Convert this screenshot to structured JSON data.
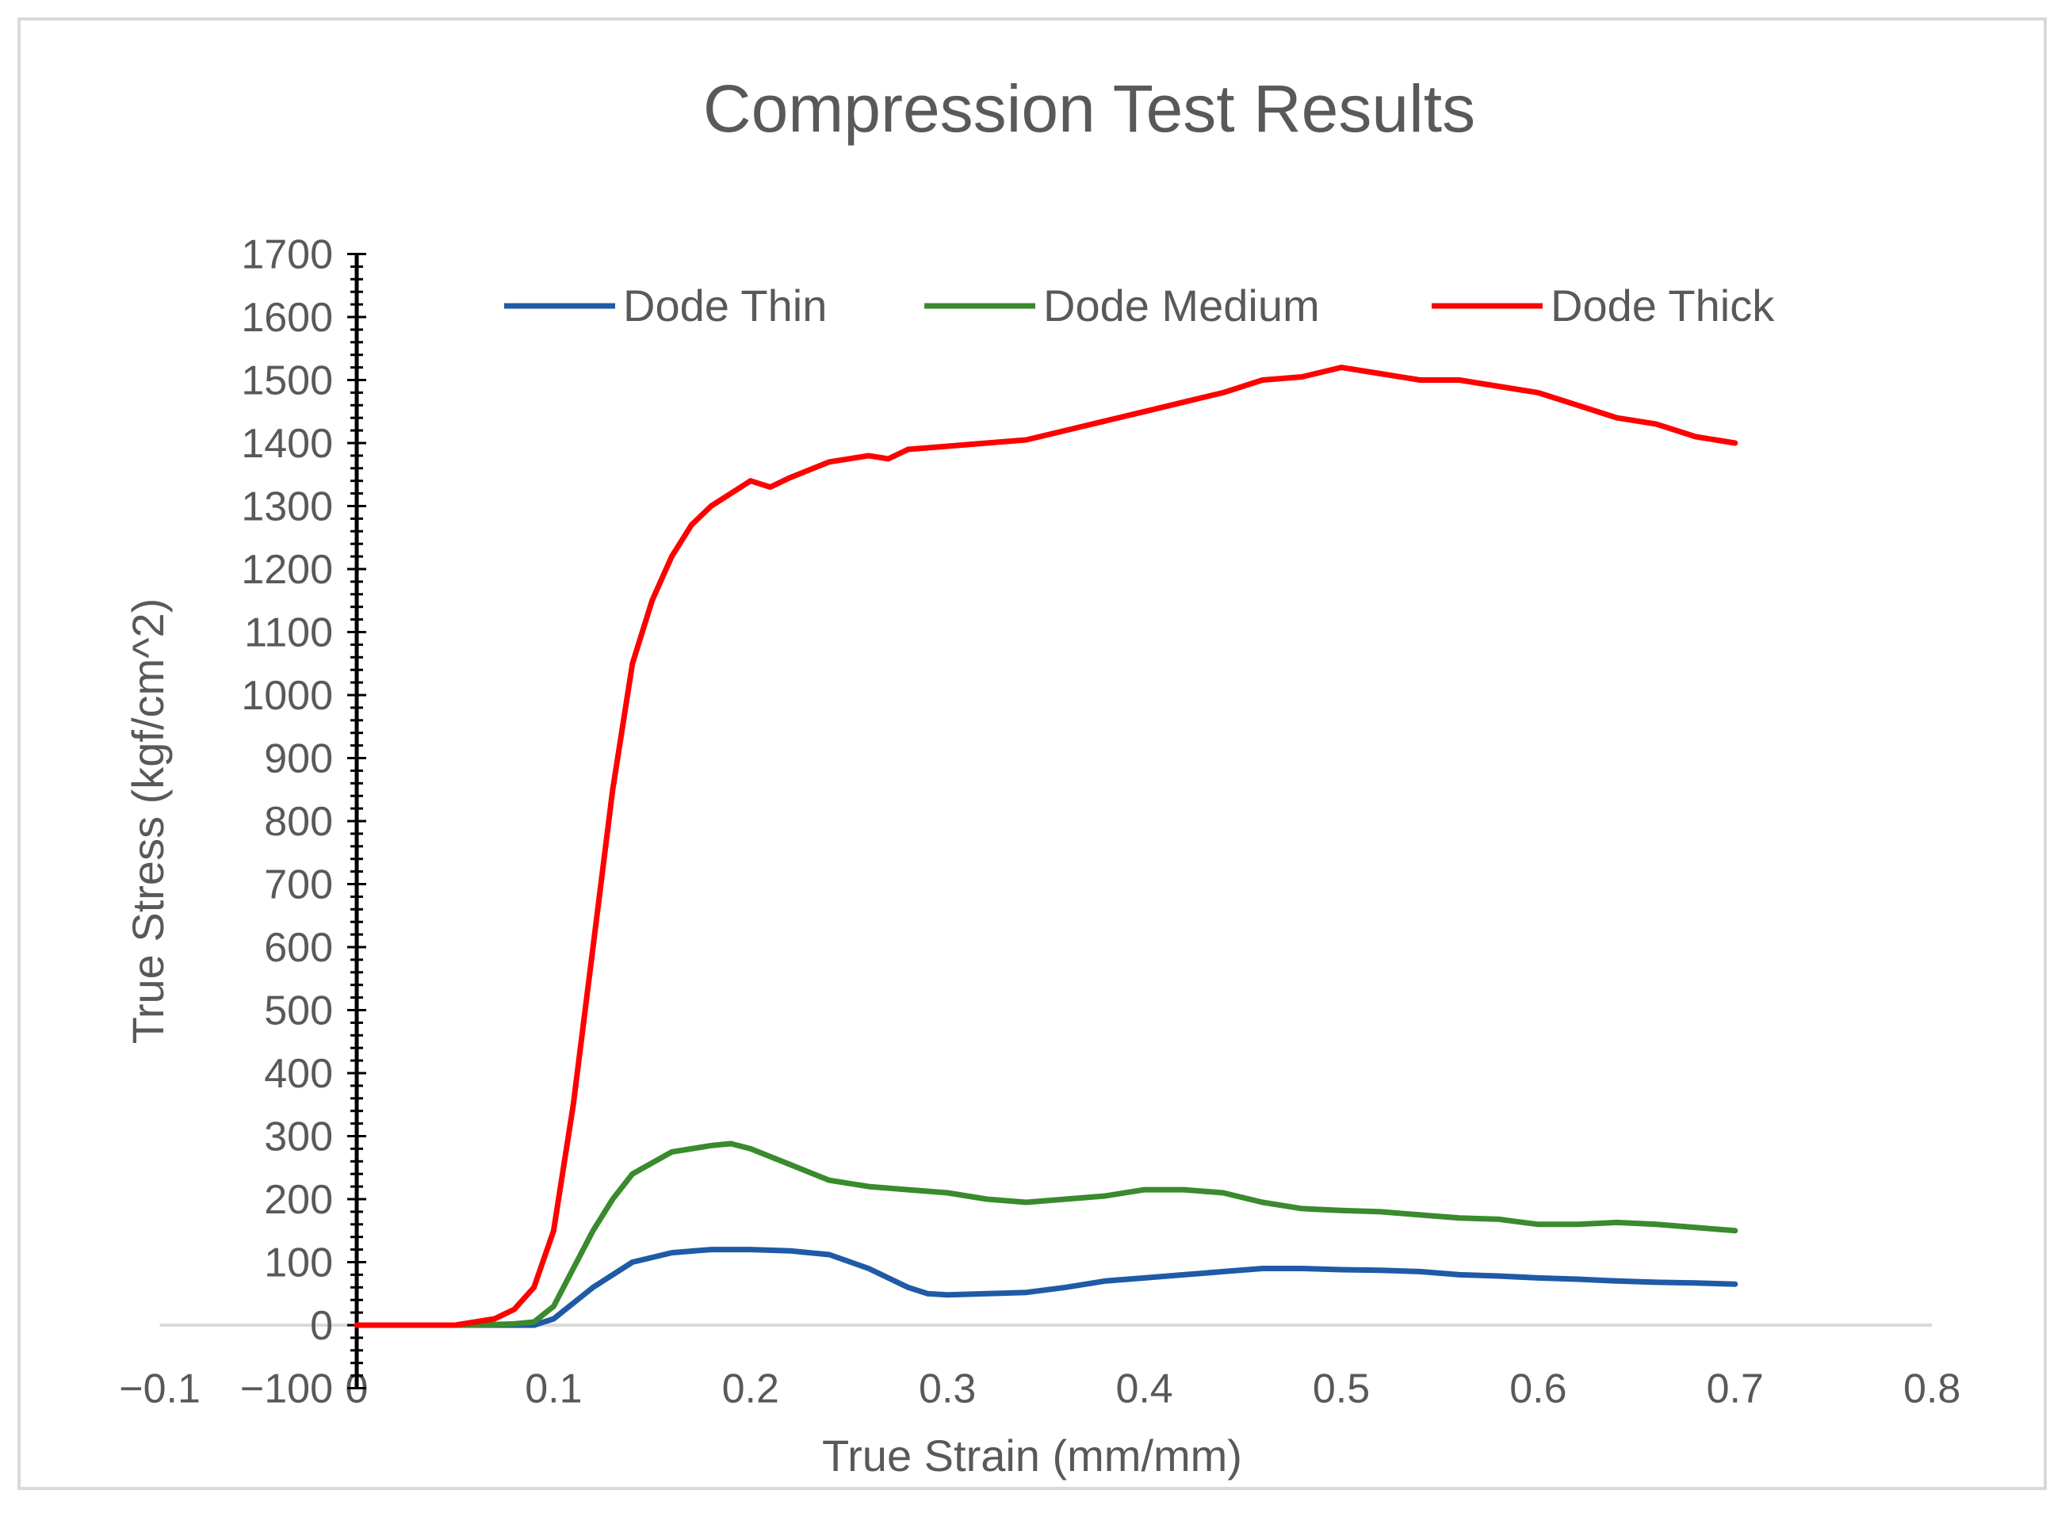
{
  "chart_data": {
    "type": "line",
    "title": "Compression Test Results",
    "xlabel": "True Strain (mm/mm)",
    "ylabel": "True Stress (kgf/cm^2)",
    "xlim": [
      -0.1,
      0.8
    ],
    "ylim": [
      -100,
      1700
    ],
    "x_ticks": [
      -0.1,
      0,
      0.1,
      0.2,
      0.3,
      0.4,
      0.5,
      0.6,
      0.7,
      0.8
    ],
    "x_tick_labels": [
      "−0.1",
      "0",
      "0.1",
      "0.2",
      "0.3",
      "0.4",
      "0.5",
      "0.6",
      "0.7",
      "0.8"
    ],
    "y_ticks": [
      -100,
      0,
      100,
      200,
      300,
      400,
      500,
      600,
      700,
      800,
      900,
      1000,
      1100,
      1200,
      1300,
      1400,
      1500,
      1600,
      1700
    ],
    "y_tick_labels": [
      "−100",
      "0",
      "100",
      "200",
      "300",
      "400",
      "500",
      "600",
      "700",
      "800",
      "900",
      "1000",
      "1100",
      "1200",
      "1300",
      "1400",
      "1500",
      "1600",
      "1700"
    ],
    "grid": false,
    "legend_position": "top",
    "series": [
      {
        "name": "Dode Thin",
        "color": "#1f5aa6",
        "x": [
          0,
          0.06,
          0.08,
          0.09,
          0.1,
          0.12,
          0.14,
          0.16,
          0.18,
          0.2,
          0.22,
          0.24,
          0.26,
          0.28,
          0.29,
          0.3,
          0.32,
          0.34,
          0.36,
          0.38,
          0.4,
          0.42,
          0.44,
          0.46,
          0.48,
          0.5,
          0.52,
          0.54,
          0.56,
          0.58,
          0.6,
          0.62,
          0.64,
          0.66,
          0.68,
          0.7
        ],
        "y": [
          0,
          0,
          0,
          0,
          10,
          60,
          100,
          115,
          120,
          120,
          118,
          112,
          90,
          60,
          50,
          48,
          50,
          52,
          60,
          70,
          75,
          80,
          85,
          90,
          90,
          88,
          87,
          85,
          80,
          78,
          75,
          73,
          70,
          68,
          67,
          65
        ]
      },
      {
        "name": "Dode Medium",
        "color": "#3a8a2e",
        "x": [
          0,
          0.06,
          0.08,
          0.09,
          0.1,
          0.11,
          0.12,
          0.13,
          0.14,
          0.16,
          0.18,
          0.19,
          0.2,
          0.22,
          0.24,
          0.26,
          0.28,
          0.3,
          0.32,
          0.34,
          0.36,
          0.38,
          0.4,
          0.42,
          0.44,
          0.46,
          0.48,
          0.5,
          0.52,
          0.54,
          0.56,
          0.58,
          0.6,
          0.62,
          0.64,
          0.66,
          0.68,
          0.7
        ],
        "y": [
          0,
          0,
          2,
          5,
          30,
          90,
          150,
          200,
          240,
          275,
          285,
          288,
          280,
          255,
          230,
          220,
          215,
          210,
          200,
          195,
          200,
          205,
          215,
          215,
          210,
          195,
          185,
          182,
          180,
          175,
          170,
          168,
          160,
          160,
          163,
          160,
          155,
          150
        ]
      },
      {
        "name": "Dode Thick",
        "color": "#ff0000",
        "x": [
          0,
          0.05,
          0.07,
          0.08,
          0.09,
          0.1,
          0.11,
          0.12,
          0.13,
          0.14,
          0.15,
          0.16,
          0.17,
          0.18,
          0.19,
          0.2,
          0.21,
          0.22,
          0.24,
          0.26,
          0.27,
          0.28,
          0.3,
          0.32,
          0.34,
          0.36,
          0.38,
          0.4,
          0.42,
          0.44,
          0.46,
          0.48,
          0.5,
          0.52,
          0.54,
          0.56,
          0.58,
          0.6,
          0.62,
          0.64,
          0.66,
          0.68,
          0.7
        ],
        "y": [
          0,
          0,
          10,
          25,
          60,
          150,
          350,
          600,
          850,
          1050,
          1150,
          1220,
          1270,
          1300,
          1320,
          1340,
          1330,
          1345,
          1370,
          1380,
          1375,
          1390,
          1395,
          1400,
          1405,
          1420,
          1435,
          1450,
          1465,
          1480,
          1500,
          1505,
          1520,
          1510,
          1500,
          1500,
          1490,
          1480,
          1460,
          1440,
          1430,
          1410,
          1400
        ]
      }
    ]
  }
}
